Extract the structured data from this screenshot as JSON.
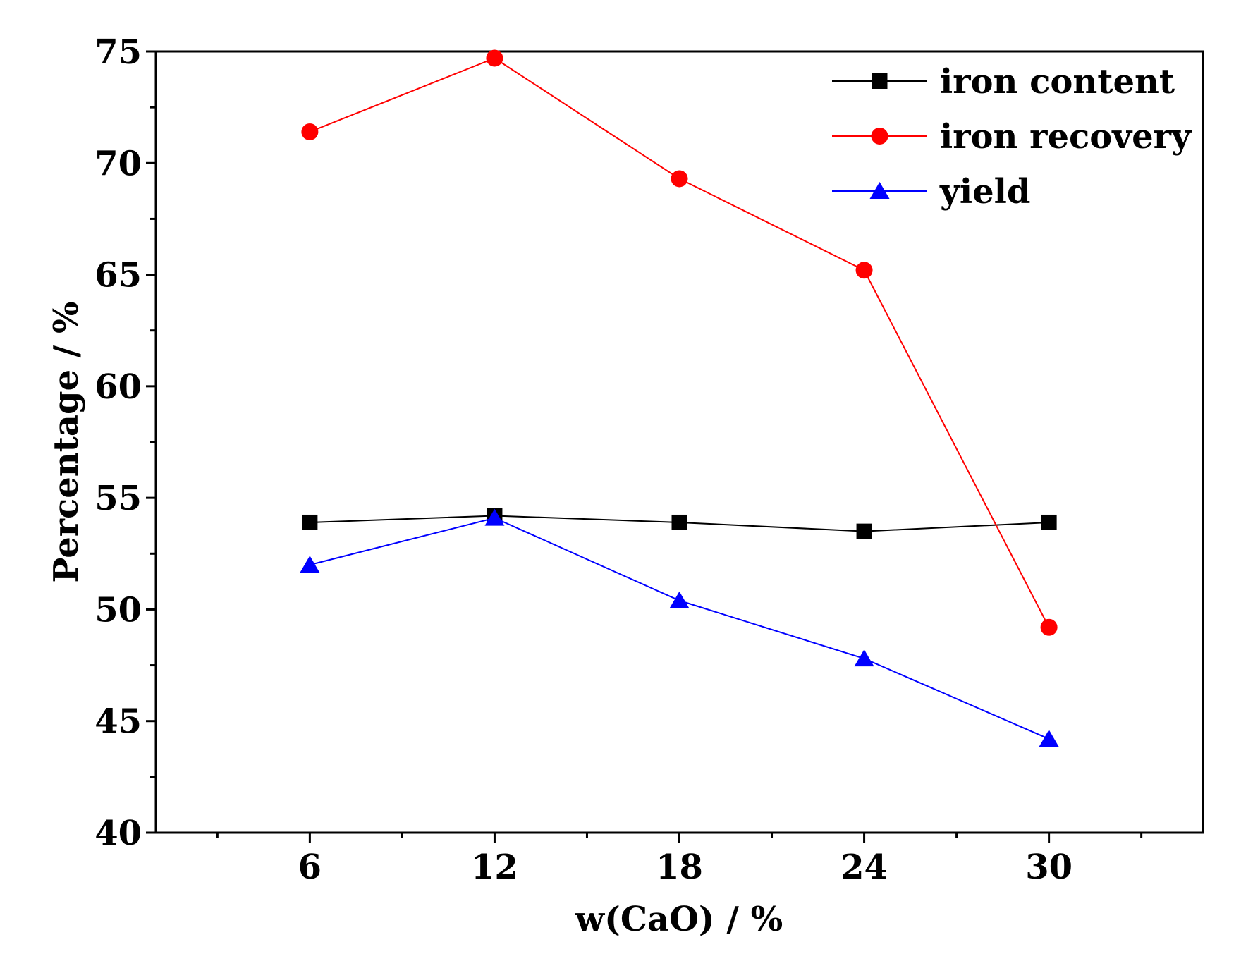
{
  "chart_data": {
    "type": "line",
    "title": "",
    "xlabel": "w(CaO) / %",
    "ylabel": "Percentage / %",
    "x": [
      6,
      12,
      18,
      24,
      30
    ],
    "x_tick_labels": [
      "6",
      "12",
      "18",
      "24",
      "30"
    ],
    "xlim": [
      1,
      35
    ],
    "ylim": [
      40,
      75
    ],
    "y_ticks": [
      40,
      45,
      50,
      55,
      60,
      65,
      70,
      75
    ],
    "y_tick_labels": [
      "40",
      "45",
      "50",
      "55",
      "60",
      "65",
      "70",
      "75"
    ],
    "grid": false,
    "legend_position": "top-right",
    "series": [
      {
        "name": "iron content",
        "color": "#000000",
        "marker": "square",
        "values": [
          53.9,
          54.2,
          53.9,
          53.5,
          53.9
        ]
      },
      {
        "name": "iron recovery",
        "color": "#ff0000",
        "marker": "circle",
        "values": [
          71.4,
          74.7,
          69.3,
          65.2,
          49.2
        ]
      },
      {
        "name": "yield",
        "color": "#0000ff",
        "marker": "triangle",
        "values": [
          52.0,
          54.1,
          50.4,
          47.8,
          44.2
        ]
      }
    ]
  }
}
